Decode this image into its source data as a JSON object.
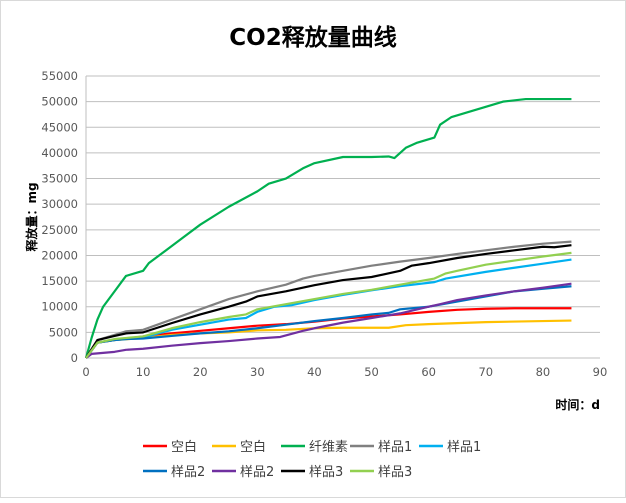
{
  "chart_data": {
    "type": "line",
    "title": "CO2释放量曲线",
    "xlabel": "时间：d",
    "ylabel": "释放量：mg",
    "xlim": [
      0,
      90
    ],
    "ylim": [
      0,
      55000
    ],
    "xticks": [
      0,
      10,
      20,
      30,
      40,
      50,
      60,
      70,
      80,
      90
    ],
    "yticks": [
      0,
      5000,
      10000,
      15000,
      20000,
      25000,
      30000,
      35000,
      40000,
      45000,
      50000,
      55000
    ],
    "grid": "horizontal",
    "legend_position": "bottom",
    "series": [
      {
        "name": "空白",
        "color": "#ff0000",
        "points": [
          [
            0,
            0
          ],
          [
            2,
            3000
          ],
          [
            5,
            3500
          ],
          [
            10,
            4200
          ],
          [
            15,
            4800
          ],
          [
            20,
            5300
          ],
          [
            25,
            5800
          ],
          [
            30,
            6300
          ],
          [
            35,
            6600
          ],
          [
            40,
            7100
          ],
          [
            45,
            7700
          ],
          [
            50,
            8100
          ],
          [
            55,
            8500
          ],
          [
            60,
            9000
          ],
          [
            65,
            9400
          ],
          [
            70,
            9600
          ],
          [
            75,
            9700
          ],
          [
            85,
            9700
          ]
        ]
      },
      {
        "name": "空白",
        "color": "#ffc000",
        "points": [
          [
            0,
            0
          ],
          [
            2,
            3000
          ],
          [
            5,
            3500
          ],
          [
            10,
            3900
          ],
          [
            15,
            4500
          ],
          [
            20,
            4800
          ],
          [
            25,
            5000
          ],
          [
            30,
            5400
          ],
          [
            35,
            5500
          ],
          [
            40,
            5800
          ],
          [
            45,
            5900
          ],
          [
            53,
            5900
          ],
          [
            56,
            6400
          ],
          [
            60,
            6600
          ],
          [
            70,
            7000
          ],
          [
            80,
            7200
          ],
          [
            85,
            7300
          ]
        ]
      },
      {
        "name": "纤维素",
        "color": "#00b050",
        "points": [
          [
            0,
            0
          ],
          [
            1,
            4000
          ],
          [
            2,
            7500
          ],
          [
            3,
            10000
          ],
          [
            5,
            13000
          ],
          [
            7,
            16000
          ],
          [
            10,
            17000
          ],
          [
            11,
            18500
          ],
          [
            14,
            21000
          ],
          [
            17,
            23500
          ],
          [
            20,
            26000
          ],
          [
            25,
            29500
          ],
          [
            30,
            32500
          ],
          [
            32,
            34000
          ],
          [
            35,
            35000
          ],
          [
            38,
            37000
          ],
          [
            40,
            38000
          ],
          [
            45,
            39200
          ],
          [
            50,
            39200
          ],
          [
            53,
            39300
          ],
          [
            54,
            39000
          ],
          [
            56,
            41000
          ],
          [
            58,
            42000
          ],
          [
            61,
            43000
          ],
          [
            62,
            45500
          ],
          [
            64,
            47000
          ],
          [
            70,
            49000
          ],
          [
            73,
            50000
          ],
          [
            77,
            50500
          ],
          [
            85,
            50500
          ]
        ]
      },
      {
        "name": "样品1",
        "color": "#808080",
        "points": [
          [
            0,
            0
          ],
          [
            2,
            3500
          ],
          [
            5,
            4500
          ],
          [
            7,
            5200
          ],
          [
            10,
            5500
          ],
          [
            15,
            7500
          ],
          [
            20,
            9500
          ],
          [
            25,
            11500
          ],
          [
            30,
            13000
          ],
          [
            35,
            14300
          ],
          [
            38,
            15500
          ],
          [
            40,
            16000
          ],
          [
            45,
            17000
          ],
          [
            50,
            18000
          ],
          [
            55,
            18800
          ],
          [
            60,
            19500
          ],
          [
            65,
            20300
          ],
          [
            70,
            21000
          ],
          [
            75,
            21700
          ],
          [
            80,
            22300
          ],
          [
            85,
            22700
          ]
        ]
      },
      {
        "name": "样品1",
        "color": "#00b0f0",
        "points": [
          [
            0,
            0
          ],
          [
            2,
            3000
          ],
          [
            5,
            3500
          ],
          [
            10,
            4000
          ],
          [
            15,
            5500
          ],
          [
            20,
            6500
          ],
          [
            25,
            7500
          ],
          [
            28,
            7800
          ],
          [
            30,
            9000
          ],
          [
            33,
            10000
          ],
          [
            36,
            10300
          ],
          [
            40,
            11300
          ],
          [
            45,
            12300
          ],
          [
            50,
            13200
          ],
          [
            55,
            14000
          ],
          [
            61,
            14800
          ],
          [
            63,
            15500
          ],
          [
            70,
            16800
          ],
          [
            75,
            17600
          ],
          [
            80,
            18400
          ],
          [
            85,
            19200
          ]
        ]
      },
      {
        "name": "样品2",
        "color": "#0070c0",
        "points": [
          [
            0,
            0
          ],
          [
            2,
            3000
          ],
          [
            5,
            3500
          ],
          [
            7,
            3700
          ],
          [
            10,
            3800
          ],
          [
            15,
            4300
          ],
          [
            20,
            4800
          ],
          [
            25,
            5200
          ],
          [
            30,
            5800
          ],
          [
            35,
            6500
          ],
          [
            40,
            7200
          ],
          [
            45,
            7800
          ],
          [
            50,
            8500
          ],
          [
            53,
            8800
          ],
          [
            55,
            9500
          ],
          [
            60,
            10000
          ],
          [
            65,
            11000
          ],
          [
            70,
            12000
          ],
          [
            75,
            13000
          ],
          [
            80,
            13500
          ],
          [
            85,
            14000
          ]
        ]
      },
      {
        "name": "样品2",
        "color": "#7030a0",
        "points": [
          [
            0,
            0
          ],
          [
            1,
            800
          ],
          [
            5,
            1200
          ],
          [
            7,
            1600
          ],
          [
            10,
            1800
          ],
          [
            15,
            2400
          ],
          [
            20,
            2900
          ],
          [
            25,
            3300
          ],
          [
            30,
            3800
          ],
          [
            34,
            4100
          ],
          [
            38,
            5300
          ],
          [
            40,
            5800
          ],
          [
            45,
            6900
          ],
          [
            50,
            7800
          ],
          [
            55,
            8700
          ],
          [
            60,
            10000
          ],
          [
            62,
            10500
          ],
          [
            65,
            11300
          ],
          [
            70,
            12200
          ],
          [
            75,
            13000
          ],
          [
            80,
            13700
          ],
          [
            85,
            14500
          ]
        ]
      },
      {
        "name": "样品3",
        "color": "#000000",
        "points": [
          [
            0,
            0
          ],
          [
            2,
            3500
          ],
          [
            5,
            4300
          ],
          [
            7,
            4800
          ],
          [
            10,
            5000
          ],
          [
            15,
            6800
          ],
          [
            20,
            8500
          ],
          [
            25,
            10000
          ],
          [
            28,
            11000
          ],
          [
            30,
            12000
          ],
          [
            35,
            13000
          ],
          [
            40,
            14200
          ],
          [
            45,
            15200
          ],
          [
            50,
            15800
          ],
          [
            55,
            17000
          ],
          [
            57,
            18000
          ],
          [
            60,
            18500
          ],
          [
            65,
            19500
          ],
          [
            70,
            20300
          ],
          [
            75,
            21000
          ],
          [
            80,
            21700
          ],
          [
            82,
            21600
          ],
          [
            85,
            22000
          ]
        ]
      },
      {
        "name": "样品3",
        "color": "#92d050",
        "points": [
          [
            0,
            0
          ],
          [
            2,
            3000
          ],
          [
            5,
            3700
          ],
          [
            10,
            4200
          ],
          [
            15,
            5800
          ],
          [
            20,
            7000
          ],
          [
            25,
            8000
          ],
          [
            28,
            8500
          ],
          [
            30,
            9500
          ],
          [
            35,
            10500
          ],
          [
            40,
            11500
          ],
          [
            45,
            12500
          ],
          [
            50,
            13300
          ],
          [
            55,
            14300
          ],
          [
            60,
            15300
          ],
          [
            61,
            15500
          ],
          [
            63,
            16500
          ],
          [
            65,
            17000
          ],
          [
            70,
            18200
          ],
          [
            75,
            19000
          ],
          [
            80,
            19800
          ],
          [
            85,
            20500
          ]
        ]
      }
    ]
  }
}
